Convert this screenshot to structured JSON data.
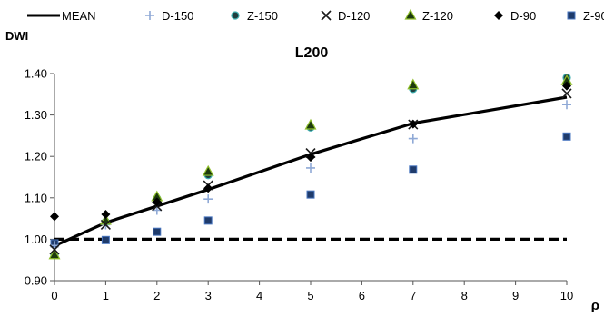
{
  "chart_data": {
    "type": "scatter",
    "title": "L200",
    "ylabel": "DWI",
    "xlabel": "ρ",
    "xlim": [
      0,
      10
    ],
    "ylim": [
      0.9,
      1.4
    ],
    "x_ticks": [
      "0",
      "1",
      "2",
      "3",
      "4",
      "5",
      "6",
      "7",
      "8",
      "9",
      "10"
    ],
    "y_ticks": [
      "0.90",
      "1.00",
      "1.10",
      "1.20",
      "1.30",
      "1.40"
    ],
    "legend_position": "top",
    "grid": false,
    "reference_line": {
      "y": 1.0,
      "style": "dashed"
    },
    "series": [
      {
        "name": "MEAN",
        "marker": "line",
        "color": "#000000",
        "x": [
          0,
          1,
          2,
          3,
          5,
          7,
          10
        ],
        "y": [
          0.984,
          1.04,
          1.08,
          1.12,
          1.205,
          1.28,
          1.343
        ]
      },
      {
        "name": "D-150",
        "marker": "plus",
        "color": "#8fa9d6",
        "x": [
          0,
          1,
          2,
          3,
          5,
          7,
          10
        ],
        "y": [
          0.985,
          1.035,
          1.07,
          1.097,
          1.172,
          1.243,
          1.325
        ]
      },
      {
        "name": "Z-150",
        "marker": "circle",
        "color": "#1f3f3f",
        "x": [
          0,
          1,
          2,
          3,
          5,
          7,
          10
        ],
        "y": [
          0.962,
          1.042,
          1.098,
          1.155,
          1.27,
          1.363,
          1.39
        ]
      },
      {
        "name": "D-120",
        "marker": "x",
        "color": "#1a1a1a",
        "x": [
          0,
          1,
          2,
          3,
          5,
          7,
          10
        ],
        "y": [
          0.975,
          1.035,
          1.08,
          1.13,
          1.208,
          1.277,
          1.352
        ]
      },
      {
        "name": "Z-120",
        "marker": "triangle",
        "color": "#1d3a0e",
        "x": [
          0,
          1,
          2,
          3,
          5,
          7,
          10
        ],
        "y": [
          0.962,
          1.045,
          1.102,
          1.163,
          1.275,
          1.372,
          1.382
        ]
      },
      {
        "name": "D-90",
        "marker": "diamond",
        "color": "#000000",
        "x": [
          0,
          1,
          2,
          3,
          5,
          7,
          10
        ],
        "y": [
          1.055,
          1.06,
          1.09,
          1.123,
          1.198,
          1.278,
          1.37
        ]
      },
      {
        "name": "Z-90",
        "marker": "square",
        "color": "#1f3b6b",
        "x": [
          0,
          1,
          2,
          3,
          5,
          7,
          10
        ],
        "y": [
          0.99,
          0.998,
          1.018,
          1.045,
          1.108,
          1.168,
          1.248
        ]
      }
    ]
  }
}
